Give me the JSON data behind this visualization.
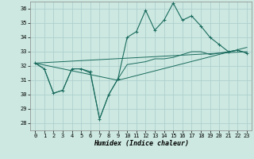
{
  "xlabel": "Humidex (Indice chaleur)",
  "xlim": [
    -0.5,
    23.5
  ],
  "ylim": [
    27.5,
    36.5
  ],
  "yticks": [
    28,
    29,
    30,
    31,
    32,
    33,
    34,
    35,
    36
  ],
  "xticks": [
    0,
    1,
    2,
    3,
    4,
    5,
    6,
    7,
    8,
    9,
    10,
    11,
    12,
    13,
    14,
    15,
    16,
    17,
    18,
    19,
    20,
    21,
    22,
    23
  ],
  "bg_color": "#cce8e0",
  "grid_color": "#aacccc",
  "line_color": "#1a6b5e",
  "line1_x": [
    0,
    1,
    2,
    3,
    4,
    5,
    6,
    7,
    8,
    9,
    10,
    11,
    12,
    13,
    14,
    15,
    16,
    17,
    18,
    19,
    20,
    21,
    22,
    23
  ],
  "line1_y": [
    32.2,
    31.8,
    30.1,
    30.3,
    31.8,
    31.8,
    31.6,
    28.3,
    30.0,
    31.1,
    34.0,
    34.4,
    35.9,
    34.5,
    35.2,
    36.4,
    35.2,
    35.5,
    34.8,
    34.0,
    33.5,
    33.0,
    33.1,
    32.9
  ],
  "line2_x": [
    0,
    1,
    2,
    3,
    4,
    5,
    6,
    7,
    8,
    9,
    10,
    11,
    12,
    13,
    14,
    15,
    16,
    17,
    18,
    19,
    20,
    21,
    22,
    23
  ],
  "line2_y": [
    32.2,
    31.8,
    30.1,
    30.3,
    31.8,
    31.8,
    31.5,
    28.3,
    30.0,
    31.1,
    32.1,
    32.2,
    32.3,
    32.5,
    32.5,
    32.6,
    32.8,
    33.0,
    33.0,
    32.8,
    32.9,
    33.0,
    33.1,
    32.9
  ],
  "line3_x": [
    0,
    23
  ],
  "line3_y": [
    32.2,
    33.0
  ],
  "line4_x": [
    0,
    9,
    23
  ],
  "line4_y": [
    32.2,
    31.0,
    33.3
  ]
}
